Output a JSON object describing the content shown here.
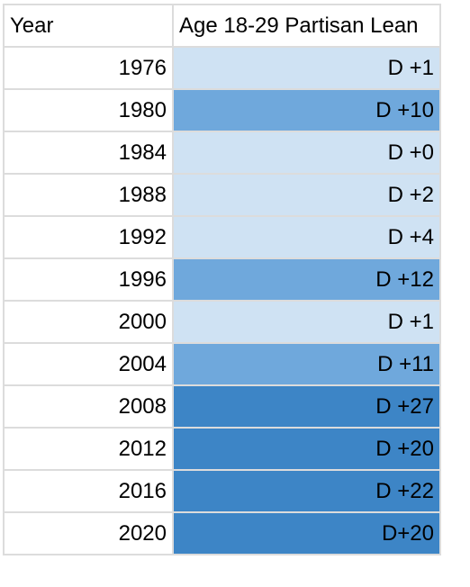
{
  "table": {
    "headers": {
      "year": "Year",
      "lean": "Age 18-29 Partisan Lean"
    },
    "colors": {
      "light": "#cfe2f3",
      "mid": "#6fa8dc",
      "dark": "#3d85c6",
      "grid": "#dcdcdc"
    },
    "rows": [
      {
        "year": "1976",
        "lean": "D +1",
        "tier": "light"
      },
      {
        "year": "1980",
        "lean": "D +10",
        "tier": "mid"
      },
      {
        "year": "1984",
        "lean": "D +0",
        "tier": "light"
      },
      {
        "year": "1988",
        "lean": "D +2",
        "tier": "light"
      },
      {
        "year": "1992",
        "lean": "D +4",
        "tier": "light"
      },
      {
        "year": "1996",
        "lean": "D +12",
        "tier": "mid"
      },
      {
        "year": "2000",
        "lean": "D +1",
        "tier": "light"
      },
      {
        "year": "2004",
        "lean": "D +11",
        "tier": "mid"
      },
      {
        "year": "2008",
        "lean": "D +27",
        "tier": "dark"
      },
      {
        "year": "2012",
        "lean": "D +20",
        "tier": "dark"
      },
      {
        "year": "2016",
        "lean": "D +22",
        "tier": "dark"
      },
      {
        "year": "2020",
        "lean": "D+20",
        "tier": "dark"
      }
    ]
  }
}
